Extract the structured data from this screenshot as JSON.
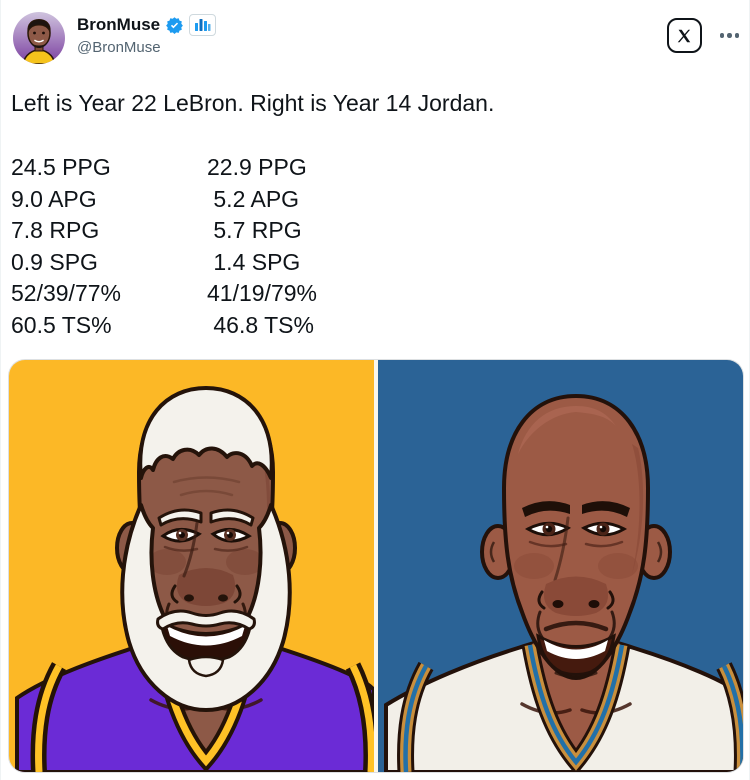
{
  "header": {
    "display_name": "BronMuse",
    "handle": "@BronMuse",
    "verified": true,
    "badges": [
      "verified-badge",
      "professional-chart-badge"
    ],
    "actions": [
      "grok-x-button",
      "more-options"
    ]
  },
  "tweet": {
    "text": "Left is Year 22 LeBron. Right is Year 14 Jordan.",
    "stats_rows": [
      {
        "l": "24.5 PPG",
        "r": "22.9 PPG"
      },
      {
        "l": "9.0 APG",
        "r": " 5.2 APG"
      },
      {
        "l": "7.8 RPG",
        "r": " 5.7 RPG"
      },
      {
        "l": "0.9 SPG",
        "r": " 1.4 SPG"
      },
      {
        "l": "52/39/77%",
        "r": "41/19/79%"
      },
      {
        "l": "60.5 TS%",
        "r": " 46.8 TS%"
      }
    ],
    "stats_columns": {
      "left_player": "LeBron (Year 22)",
      "right_player": "Jordan (Year 14)"
    }
  },
  "photo": {
    "description": "Side-by-side cartoon portraits",
    "panels": [
      {
        "player": "LeBron James (old, white beard)",
        "jersey": "purple Lakers",
        "background": "#fcb826"
      },
      {
        "player": "Michael Jordan (bald)",
        "jersey": "white Wizards",
        "background": "#2b6396"
      }
    ]
  },
  "colors": {
    "accent_blue": "#1d9bf0",
    "text": "#0f1419",
    "secondary_text": "#536471",
    "lakers_gold_bg": "#fcb826",
    "wizards_blue_bg": "#2b6396",
    "jersey_purple": "#6b2bd6",
    "trim_yellow": "#ffc226",
    "wizards_gold_trim": "#c98f3d",
    "wizards_blue_trim": "#2270a8"
  }
}
